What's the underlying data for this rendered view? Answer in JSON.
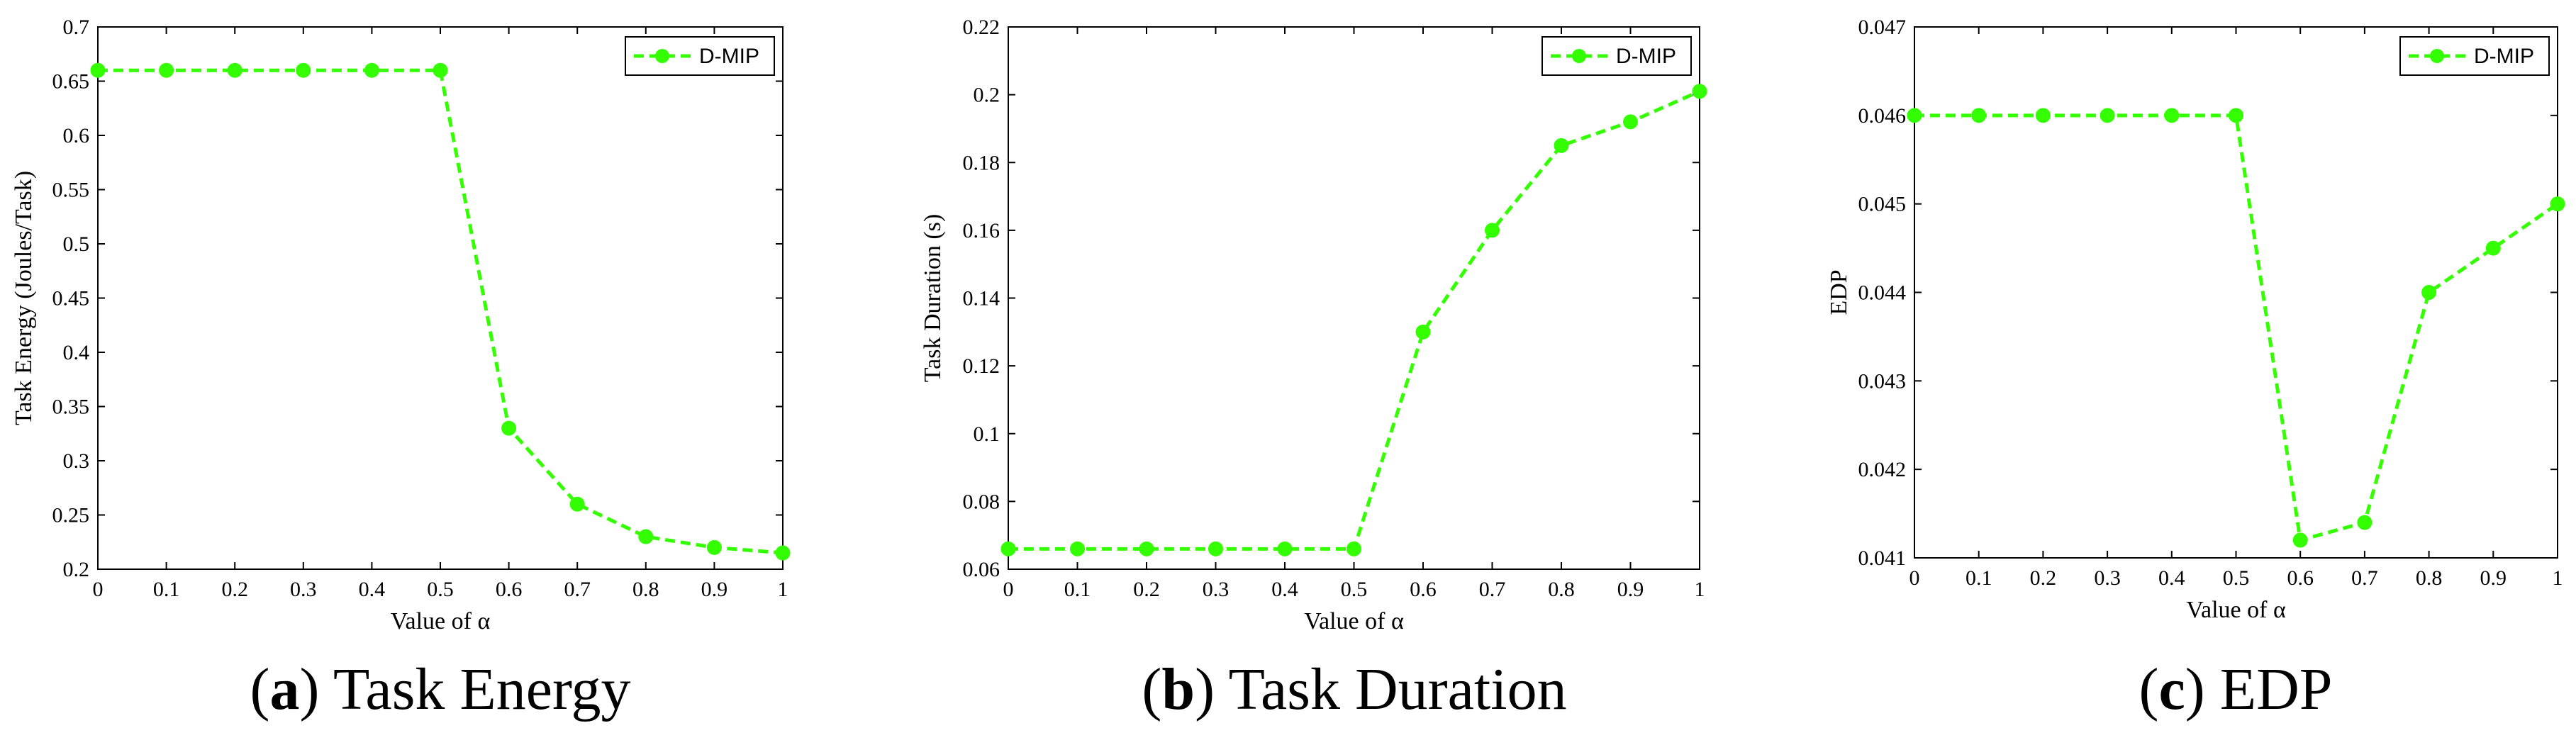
{
  "colors": {
    "series": "#33ff00",
    "axis": "#000000",
    "background": "#ffffff"
  },
  "chart_data": [
    {
      "type": "line",
      "caption_letter": "a",
      "caption_text": "Task Energy",
      "xlabel": "Value of α",
      "ylabel": "Task Energy (Joules/Task)",
      "xlim": [
        0,
        1
      ],
      "ylim": [
        0.2,
        0.7
      ],
      "x_ticks": [
        "0",
        "0.1",
        "0.2",
        "0.3",
        "0.4",
        "0.5",
        "0.6",
        "0.7",
        "0.8",
        "0.9",
        "1"
      ],
      "y_ticks": [
        "0.2",
        "0.25",
        "0.3",
        "0.35",
        "0.4",
        "0.45",
        "0.5",
        "0.55",
        "0.6",
        "0.65",
        "0.7"
      ],
      "grid": false,
      "legend_position": "top-right",
      "series": [
        {
          "name": "D-MIP",
          "x": [
            0,
            0.1,
            0.2,
            0.3,
            0.4,
            0.5,
            0.6,
            0.7,
            0.8,
            0.9,
            1
          ],
          "y": [
            0.66,
            0.66,
            0.66,
            0.66,
            0.66,
            0.66,
            0.33,
            0.26,
            0.23,
            0.22,
            0.215
          ]
        }
      ]
    },
    {
      "type": "line",
      "caption_letter": "b",
      "caption_text": "Task Duration",
      "xlabel": "Value of α",
      "ylabel": "Task Duration (s)",
      "xlim": [
        0,
        1
      ],
      "ylim": [
        0.06,
        0.22
      ],
      "x_ticks": [
        "0",
        "0.1",
        "0.2",
        "0.3",
        "0.4",
        "0.5",
        "0.6",
        "0.7",
        "0.8",
        "0.9",
        "1"
      ],
      "y_ticks": [
        "0.06",
        "0.08",
        "0.1",
        "0.12",
        "0.14",
        "0.16",
        "0.18",
        "0.2",
        "0.22"
      ],
      "grid": false,
      "legend_position": "top-right",
      "series": [
        {
          "name": "D-MIP",
          "x": [
            0,
            0.1,
            0.2,
            0.3,
            0.4,
            0.5,
            0.6,
            0.7,
            0.8,
            0.9,
            1
          ],
          "y": [
            0.066,
            0.066,
            0.066,
            0.066,
            0.066,
            0.066,
            0.13,
            0.16,
            0.185,
            0.192,
            0.201
          ]
        }
      ]
    },
    {
      "type": "line",
      "caption_letter": "c",
      "caption_text": "EDP",
      "xlabel": "Value of α",
      "ylabel": "EDP",
      "xlim": [
        0,
        1
      ],
      "ylim": [
        0.041,
        0.047
      ],
      "x_ticks": [
        "0",
        "0.1",
        "0.2",
        "0.3",
        "0.4",
        "0.5",
        "0.6",
        "0.7",
        "0.8",
        "0.9",
        "1"
      ],
      "y_ticks": [
        "0.041",
        "0.042",
        "0.043",
        "0.044",
        "0.045",
        "0.046",
        "0.047"
      ],
      "grid": false,
      "legend_position": "top-right",
      "series": [
        {
          "name": "D-MIP",
          "x": [
            0,
            0.1,
            0.2,
            0.3,
            0.4,
            0.5,
            0.6,
            0.7,
            0.8,
            0.9,
            1
          ],
          "y": [
            0.046,
            0.046,
            0.046,
            0.046,
            0.046,
            0.046,
            0.0412,
            0.0414,
            0.044,
            0.0445,
            0.045
          ]
        }
      ]
    }
  ]
}
